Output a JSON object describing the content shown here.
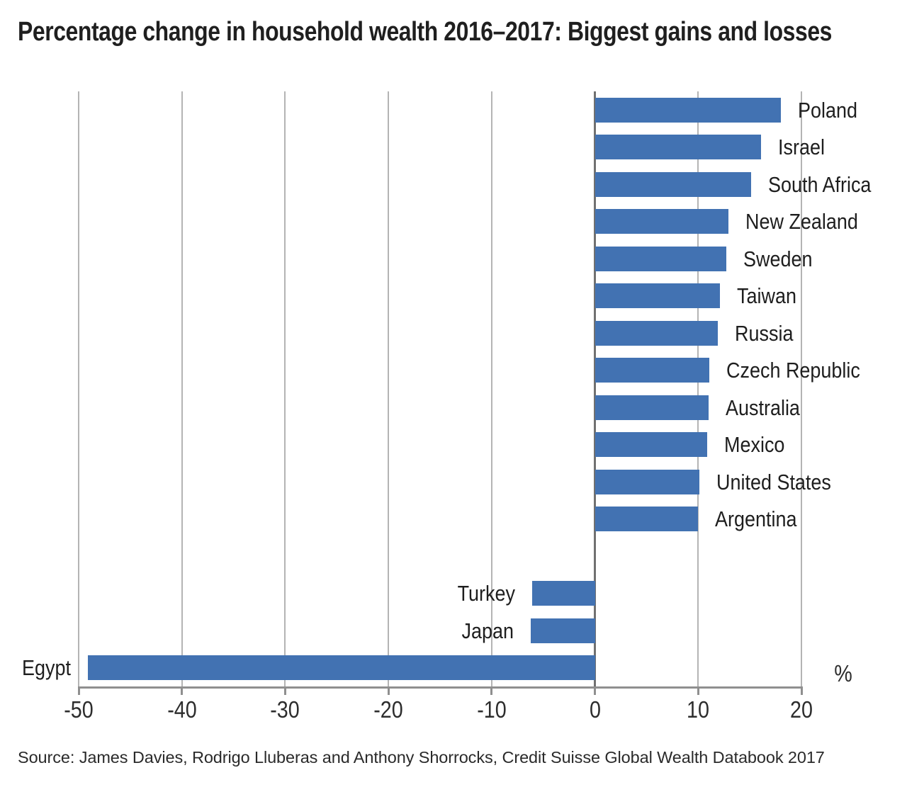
{
  "page": {
    "title": "Percentage change in household wealth 2016–2017: Biggest gains and losses",
    "source": "Source: James Davies, Rodrigo Lluberas and Anthony Shorrocks, Credit Suisse Global Wealth Databook 2017"
  },
  "chart_data": {
    "type": "bar",
    "orientation": "horizontal",
    "title": "Percentage change in household wealth 2016–2017: Biggest gains and losses",
    "categories": [
      "Poland",
      "Israel",
      "South Africa",
      "New Zealand",
      "Sweden",
      "Taiwan",
      "Russia",
      "Czech Republic",
      "Australia",
      "Mexico",
      "United States",
      "Argentina",
      "Turkey",
      "Japan",
      "Egypt"
    ],
    "values": [
      18.0,
      16.1,
      15.1,
      12.9,
      12.7,
      12.1,
      11.9,
      11.1,
      11.0,
      10.9,
      10.1,
      10.0,
      -6.1,
      -6.2,
      -49.1
    ],
    "unit": "%",
    "xlim": [
      -50,
      20
    ],
    "xticks": [
      -50,
      -40,
      -30,
      -20,
      -10,
      0,
      10,
      20
    ],
    "grid": "vertical",
    "legend": "none",
    "gap_after_index": 11,
    "bar_color": "#4272b2",
    "source": "Source: James Davies, Rodrigo Lluberas and Anthony Shorrocks, Credit Suisse Global Wealth Databook 2017"
  },
  "colors": {
    "bar": "#4272b2",
    "gridline": "#b4b4b4",
    "zero_line": "#707070",
    "axis_line": "#8f8f8f",
    "title_text": "#1f1f1f",
    "label_text": "#1e1e1e",
    "tick_text": "#2d2d2d"
  }
}
